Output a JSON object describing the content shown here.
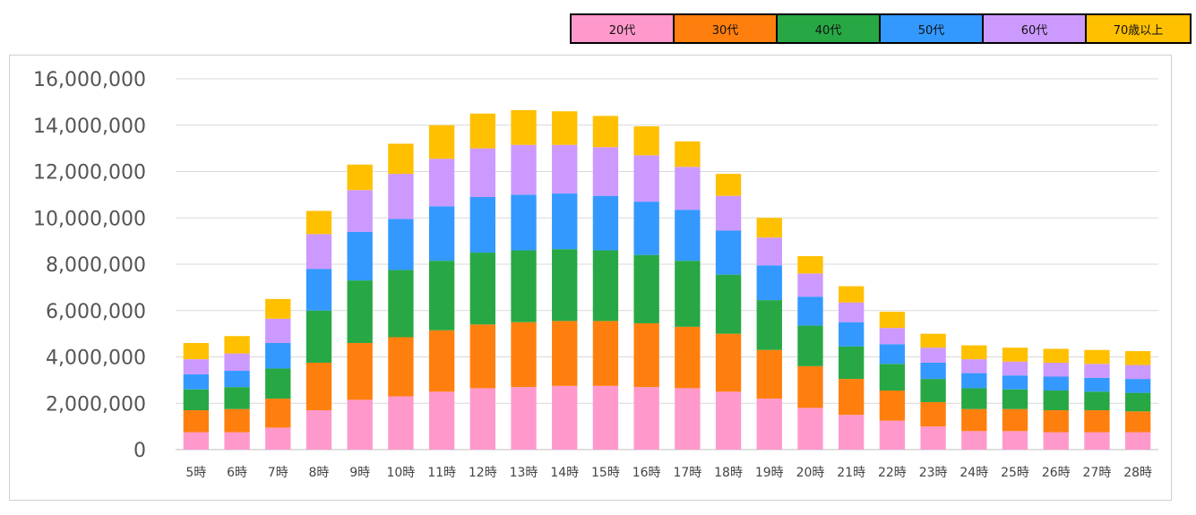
{
  "chart_data": {
    "type": "bar",
    "stacked": true,
    "title": "",
    "xlabel": "",
    "ylabel": "",
    "ylim": [
      0,
      16000000
    ],
    "yticks": [
      0,
      2000000,
      4000000,
      6000000,
      8000000,
      10000000,
      12000000,
      14000000,
      16000000
    ],
    "ytick_labels": [
      "0",
      "2,000,000",
      "4,000,000",
      "6,000,000",
      "8,000,000",
      "10,000,000",
      "12,000,000",
      "14,000,000",
      "16,000,000"
    ],
    "grid": true,
    "legend_position": "top-right",
    "categories": [
      "5時",
      "6時",
      "7時",
      "8時",
      "9時",
      "10時",
      "11時",
      "12時",
      "13時",
      "14時",
      "15時",
      "16時",
      "17時",
      "18時",
      "19時",
      "20時",
      "21時",
      "22時",
      "23時",
      "24時",
      "25時",
      "26時",
      "27時",
      "28時"
    ],
    "series": [
      {
        "name": "20代",
        "color": "#FF99CC",
        "values": [
          750000,
          750000,
          950000,
          1700000,
          2150000,
          2300000,
          2500000,
          2650000,
          2700000,
          2750000,
          2750000,
          2700000,
          2650000,
          2500000,
          2200000,
          1800000,
          1500000,
          1250000,
          1000000,
          800000,
          800000,
          750000,
          750000,
          750000
        ]
      },
      {
        "name": "30代",
        "color": "#FF7F0E",
        "values": [
          950000,
          1000000,
          1250000,
          2050000,
          2450000,
          2550000,
          2650000,
          2750000,
          2800000,
          2800000,
          2800000,
          2750000,
          2650000,
          2500000,
          2100000,
          1800000,
          1550000,
          1300000,
          1050000,
          950000,
          950000,
          950000,
          950000,
          900000
        ]
      },
      {
        "name": "40代",
        "color": "#27A844",
        "values": [
          900000,
          950000,
          1300000,
          2250000,
          2700000,
          2900000,
          3000000,
          3100000,
          3100000,
          3100000,
          3050000,
          2950000,
          2850000,
          2550000,
          2150000,
          1750000,
          1400000,
          1150000,
          1000000,
          900000,
          850000,
          850000,
          800000,
          800000
        ]
      },
      {
        "name": "50代",
        "color": "#3399FF",
        "values": [
          650000,
          700000,
          1100000,
          1800000,
          2100000,
          2200000,
          2350000,
          2400000,
          2400000,
          2400000,
          2350000,
          2300000,
          2200000,
          1900000,
          1500000,
          1250000,
          1050000,
          850000,
          700000,
          650000,
          600000,
          600000,
          600000,
          600000
        ]
      },
      {
        "name": "60代",
        "color": "#CC99FF",
        "values": [
          650000,
          750000,
          1050000,
          1500000,
          1800000,
          1950000,
          2050000,
          2100000,
          2150000,
          2100000,
          2100000,
          2000000,
          1850000,
          1500000,
          1200000,
          1000000,
          850000,
          700000,
          650000,
          600000,
          600000,
          600000,
          600000,
          600000
        ]
      },
      {
        "name": "70歳以上",
        "color": "#FFC000",
        "values": [
          700000,
          750000,
          850000,
          1000000,
          1100000,
          1300000,
          1450000,
          1500000,
          1500000,
          1450000,
          1350000,
          1250000,
          1100000,
          950000,
          850000,
          750000,
          700000,
          700000,
          600000,
          600000,
          600000,
          600000,
          600000,
          600000
        ]
      }
    ]
  }
}
